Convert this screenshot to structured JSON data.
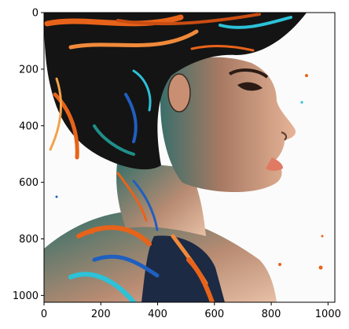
{
  "image": {
    "subject": "",
    "x_range": [
      0,
      1024
    ],
    "y_range": [
      0,
      1024
    ]
  },
  "axes": {
    "x_ticks": [
      {
        "value": 0,
        "label": "0"
      },
      {
        "value": 200,
        "label": "200"
      },
      {
        "value": 400,
        "label": "400"
      },
      {
        "value": 600,
        "label": "600"
      },
      {
        "value": 800,
        "label": "800"
      },
      {
        "value": 1000,
        "label": "1000"
      }
    ],
    "y_ticks": [
      {
        "value": 0,
        "label": "0"
      },
      {
        "value": 200,
        "label": "200"
      },
      {
        "value": 400,
        "label": "400"
      },
      {
        "value": 600,
        "label": "600"
      },
      {
        "value": 800,
        "label": "800"
      },
      {
        "value": 1000,
        "label": "1000"
      }
    ]
  },
  "colors": {
    "background": "#ffffff",
    "skin": "#d9a58a",
    "hair": "#111111",
    "orange": "#e8631a",
    "teal": "#1f8f8a",
    "blue": "#1f5fbf",
    "cyan": "#2cc2d8"
  }
}
